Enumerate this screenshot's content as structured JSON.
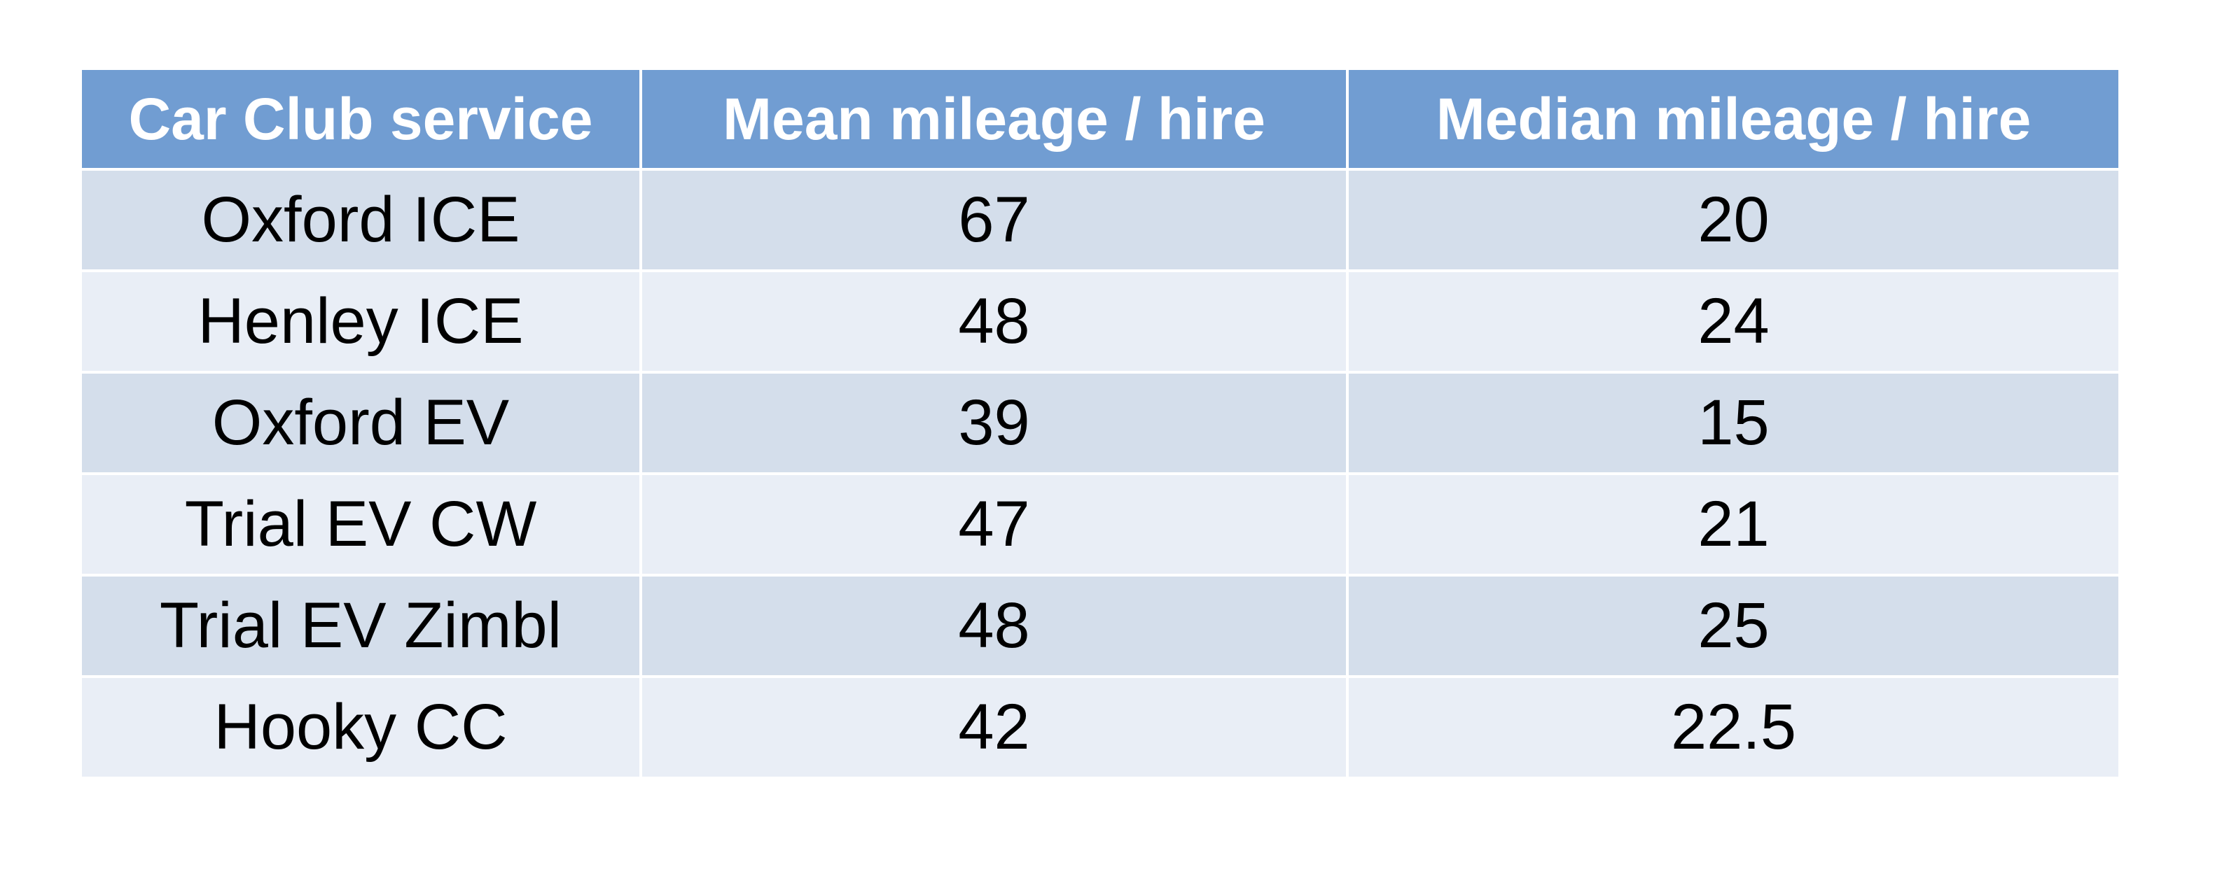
{
  "table": {
    "header": [
      "Car Club service",
      "Mean mileage / hire",
      "Median mileage / hire"
    ],
    "rows": [
      [
        "Oxford ICE",
        67,
        20
      ],
      [
        "Henley ICE",
        48,
        24
      ],
      [
        "Oxford EV",
        39,
        15
      ],
      [
        "Trial EV CW",
        47,
        21
      ],
      [
        "Trial EV Zimbl",
        48,
        25
      ],
      [
        "Hooky CC",
        42,
        22.5
      ]
    ]
  }
}
